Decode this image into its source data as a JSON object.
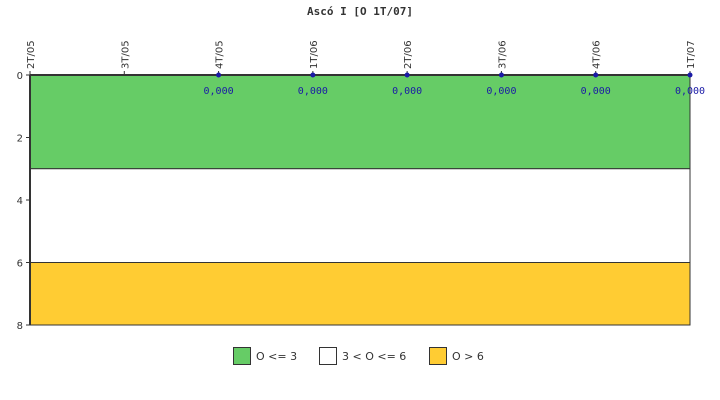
{
  "chart_data": {
    "type": "line",
    "title": "Ascó I [O 1T/07]",
    "categories": [
      "2T/05",
      "3T/05",
      "4T/05",
      "1T/06",
      "2T/06",
      "3T/06",
      "4T/06",
      "1T/07"
    ],
    "series": [
      {
        "values": [
          null,
          null,
          0,
          0,
          0,
          0,
          0,
          0
        ],
        "labels": [
          "",
          "",
          "0,000",
          "0,000",
          "0,000",
          "0,000",
          "0,000",
          "0,000"
        ],
        "color": "#1a1aa6"
      }
    ],
    "ylim": [
      0,
      8
    ],
    "y_inverted": true,
    "yticks": [
      0,
      2,
      4,
      6,
      8
    ],
    "bands": [
      {
        "from": 0,
        "to": 3,
        "color": "#66cc66",
        "label": "O <= 3"
      },
      {
        "from": 3,
        "to": 6,
        "color": "#ffffff",
        "label": "3 < O <= 6"
      },
      {
        "from": 6,
        "to": 8,
        "color": "#ffcc33",
        "label": "O > 6"
      }
    ],
    "legend_position": "bottom"
  }
}
